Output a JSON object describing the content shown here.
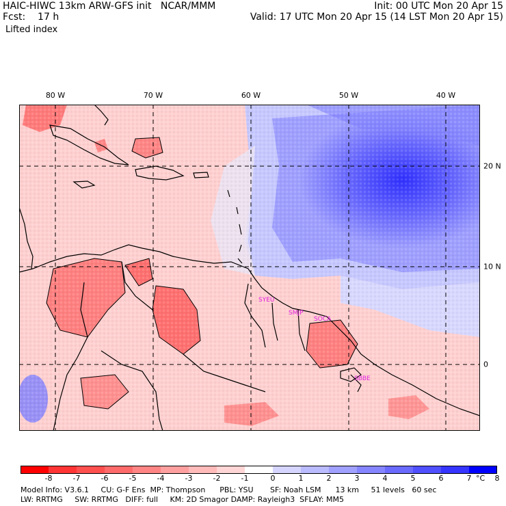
{
  "header": {
    "model": "HAIC-HIWC 13km ARW-GFS init   NCAR/MMM",
    "forecast": "Fcst:    17 h",
    "field": "Lifted index",
    "init": "Init: 00 UTC Mon 20 Apr 15",
    "valid": "Valid: 17 UTC Mon 20 Apr 15 (14 LST Mon 20 Apr 15)"
  },
  "map": {
    "lon_labels": [
      "80 W",
      "70 W",
      "60 W",
      "50 W",
      "40 W"
    ],
    "lat_labels": [
      "20 N",
      "10 N",
      "0"
    ],
    "stations": [
      "SYEU",
      "SMJP",
      "SOCA",
      "SBBE"
    ],
    "colors": {
      "station": "#e020e0",
      "grid": "#000000",
      "land_outline": "#000000"
    }
  },
  "colorbar": {
    "labels": [
      "-8",
      "-7",
      "-6",
      "-5",
      "-4",
      "-3",
      "-2",
      "-1",
      "0",
      "1",
      "2",
      "3",
      "4",
      "5",
      "6",
      "7",
      "8"
    ],
    "unit": "°C",
    "colors": [
      "#ff0000",
      "#ff3535",
      "#ff5050",
      "#ff6a6a",
      "#ff8585",
      "#ffa0a0",
      "#ffbaba",
      "#ffd5d5",
      "#ffffff",
      "#d5d5ff",
      "#babaff",
      "#a0a0ff",
      "#8585ff",
      "#6a6aff",
      "#5050ff",
      "#3535ff",
      "#0000ff"
    ]
  },
  "footer": {
    "line1": "Model Info: V3.6.1     CU: G-F Ens  MP: Thompson      PBL: YSU       SF: Noah LSM      13 km     51 levels   60 sec",
    "line2": "LW: RRTMG     SW: RRTMG   DIFF: full     KM: 2D Smagor DAMP: Rayleigh3  SFLAY: MM5"
  }
}
